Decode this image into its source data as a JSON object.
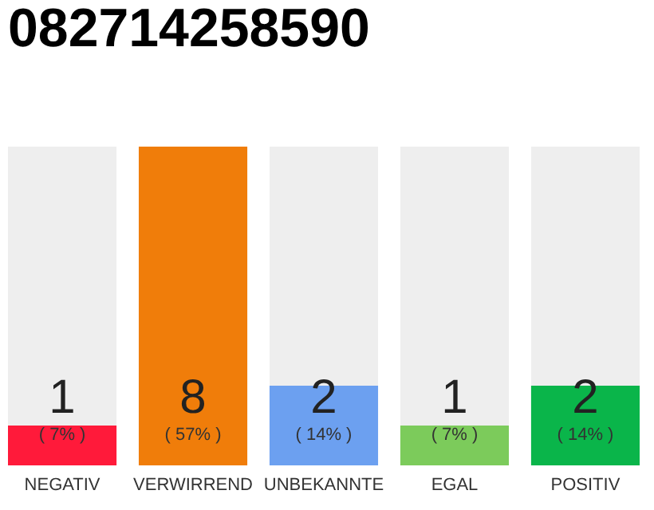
{
  "chart_data": {
    "type": "bar",
    "title": "082714258590",
    "categories": [
      "NEGATIV",
      "VERWIRREND",
      "UNBEKANNTE",
      "EGAL",
      "POSITIV"
    ],
    "series": [
      {
        "values": [
          1,
          8,
          2,
          1,
          2
        ],
        "colors": [
          "#ff1a3a",
          "#f07d0a",
          "#6ca0f0",
          "#7ccb5b",
          "#0ab54a"
        ],
        "value_labels": [
          "1",
          "8",
          "2",
          "1",
          "2"
        ]
      },
      {
        "values": [
          7,
          0,
          6,
          7,
          6
        ],
        "color": "#eeeeee"
      }
    ],
    "stacked": true,
    "ylim": [
      0,
      8
    ],
    "tick_labels": "x",
    "grid": false,
    "annotations": [
      "( 7% )",
      "( 57% )",
      "( 14% )",
      "( 7% )",
      "( 14% )"
    ]
  }
}
